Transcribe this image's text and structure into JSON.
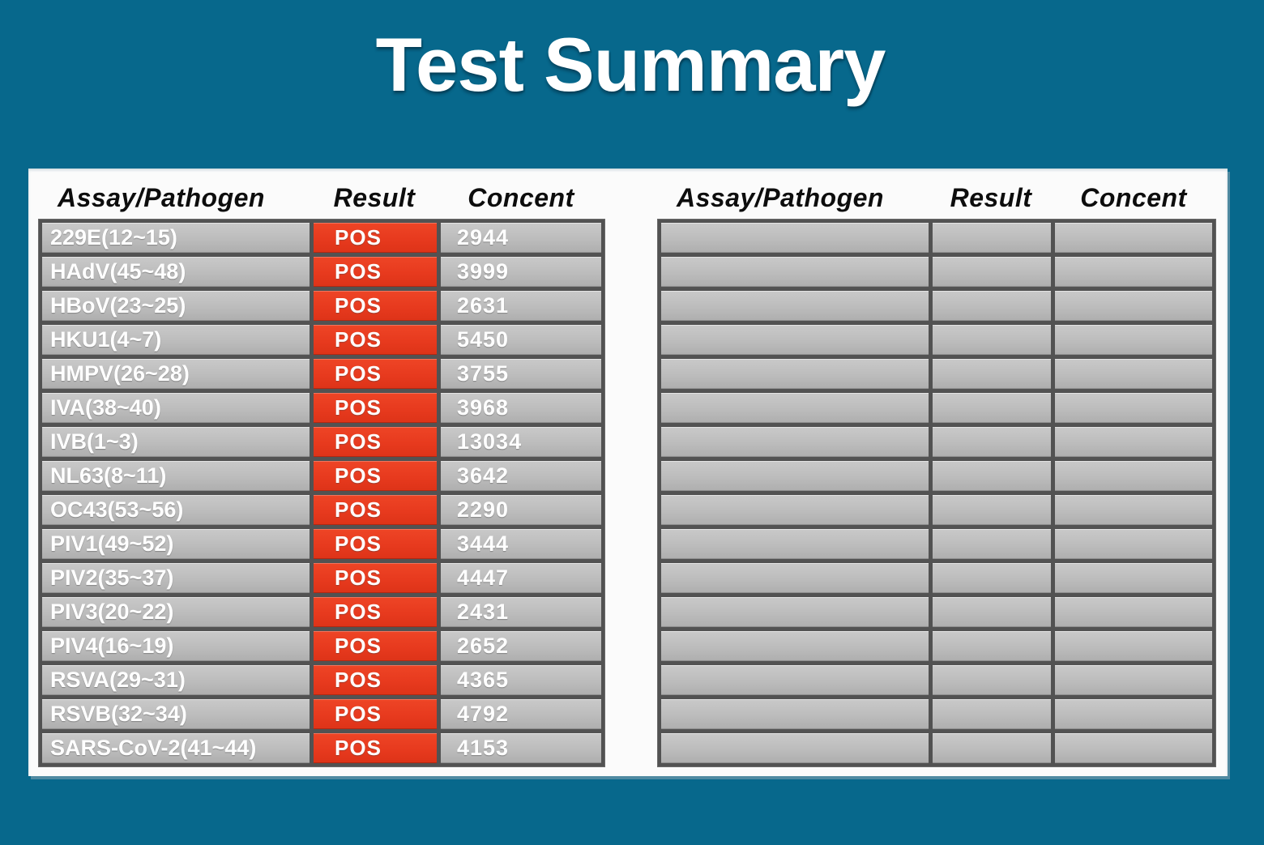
{
  "title": "Test Summary",
  "colors": {
    "background_teal": "#07688C",
    "panel_white": "#FBFBFB",
    "row_gray": "#BCBCBC",
    "separator_dark_gray": "#525252",
    "result_positive_red": "#E73A1E",
    "header_text_black": "#0D0D0D",
    "row_text_white": "#FFFFFF"
  },
  "left_table": {
    "headers": {
      "assay": "Assay/Pathogen",
      "result": "Result",
      "concent": "Concent"
    },
    "rows": [
      {
        "assay": "229E(12~15)",
        "result": "POS",
        "concent": "2944"
      },
      {
        "assay": "HAdV(45~48)",
        "result": "POS",
        "concent": "3999"
      },
      {
        "assay": "HBoV(23~25)",
        "result": "POS",
        "concent": "2631"
      },
      {
        "assay": "HKU1(4~7)",
        "result": "POS",
        "concent": "5450"
      },
      {
        "assay": "HMPV(26~28)",
        "result": "POS",
        "concent": "3755"
      },
      {
        "assay": "IVA(38~40)",
        "result": "POS",
        "concent": "3968"
      },
      {
        "assay": "IVB(1~3)",
        "result": "POS",
        "concent": "13034"
      },
      {
        "assay": "NL63(8~11)",
        "result": "POS",
        "concent": "3642"
      },
      {
        "assay": "OC43(53~56)",
        "result": "POS",
        "concent": "2290"
      },
      {
        "assay": "PIV1(49~52)",
        "result": "POS",
        "concent": "3444"
      },
      {
        "assay": "PIV2(35~37)",
        "result": "POS",
        "concent": "4447"
      },
      {
        "assay": "PIV3(20~22)",
        "result": "POS",
        "concent": "2431"
      },
      {
        "assay": "PIV4(16~19)",
        "result": "POS",
        "concent": "2652"
      },
      {
        "assay": "RSVA(29~31)",
        "result": "POS",
        "concent": "4365"
      },
      {
        "assay": "RSVB(32~34)",
        "result": "POS",
        "concent": "4792"
      },
      {
        "assay": "SARS-CoV-2(41~44)",
        "result": "POS",
        "concent": "4153"
      }
    ]
  },
  "right_table": {
    "headers": {
      "assay": "Assay/Pathogen",
      "result": "Result",
      "concent": "Concent"
    },
    "rows": [
      {
        "assay": "",
        "result": "",
        "concent": ""
      },
      {
        "assay": "",
        "result": "",
        "concent": ""
      },
      {
        "assay": "",
        "result": "",
        "concent": ""
      },
      {
        "assay": "",
        "result": "",
        "concent": ""
      },
      {
        "assay": "",
        "result": "",
        "concent": ""
      },
      {
        "assay": "",
        "result": "",
        "concent": ""
      },
      {
        "assay": "",
        "result": "",
        "concent": ""
      },
      {
        "assay": "",
        "result": "",
        "concent": ""
      },
      {
        "assay": "",
        "result": "",
        "concent": ""
      },
      {
        "assay": "",
        "result": "",
        "concent": ""
      },
      {
        "assay": "",
        "result": "",
        "concent": ""
      },
      {
        "assay": "",
        "result": "",
        "concent": ""
      },
      {
        "assay": "",
        "result": "",
        "concent": ""
      },
      {
        "assay": "",
        "result": "",
        "concent": ""
      },
      {
        "assay": "",
        "result": "",
        "concent": ""
      },
      {
        "assay": "",
        "result": "",
        "concent": ""
      }
    ]
  }
}
